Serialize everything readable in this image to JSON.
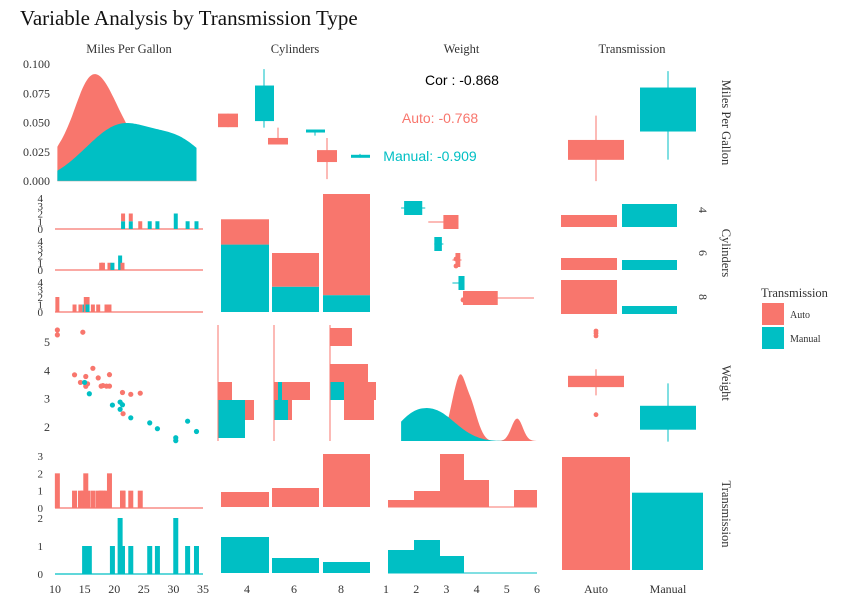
{
  "chart_data": {
    "type": "scatter-matrix",
    "title": "Variable Analysis by Transmission Type",
    "variables": [
      "Miles Per Gallon",
      "Cylinders",
      "Weight",
      "Transmission"
    ],
    "groups": [
      "Auto",
      "Manual"
    ],
    "colors": {
      "Auto": "#F8766D",
      "Manual": "#00BFC4"
    },
    "legend": {
      "title": "Transmission",
      "position": "right",
      "entries": [
        "Auto",
        "Manual"
      ]
    },
    "correlation": {
      "overall": "Cor : -0.868",
      "Auto": "Auto: -0.768",
      "Manual": "Manual: -0.909"
    },
    "axes": {
      "mpg": {
        "range": [
          10,
          35
        ],
        "ticks": [
          "10",
          "15",
          "20",
          "25",
          "30",
          "35"
        ]
      },
      "density": {
        "range": [
          0,
          0.1
        ],
        "ticks": [
          "0.000",
          "0.025",
          "0.050",
          "0.075",
          "0.100"
        ]
      },
      "cyl": {
        "levels": [
          "4",
          "6",
          "8"
        ]
      },
      "wt": {
        "range": [
          1,
          6
        ],
        "ticks": [
          "1",
          "2",
          "3",
          "4",
          "5",
          "6"
        ],
        "yticks": [
          "2",
          "3",
          "4",
          "5"
        ]
      },
      "am": {
        "levels": [
          "Auto",
          "Manual"
        ]
      },
      "count_ticks_4": [
        "0",
        "1",
        "2",
        "3",
        "4"
      ],
      "count_ticks_3": [
        "0",
        "1",
        "2",
        "3"
      ],
      "count_ticks_2": [
        "0",
        "1",
        "2"
      ]
    },
    "mpg_wt_points": [
      {
        "mpg": 21.4,
        "wt": 3.215,
        "am": "Auto"
      },
      {
        "mpg": 18.7,
        "wt": 3.44,
        "am": "Auto"
      },
      {
        "mpg": 18.1,
        "wt": 3.46,
        "am": "Auto"
      },
      {
        "mpg": 14.3,
        "wt": 3.57,
        "am": "Auto"
      },
      {
        "mpg": 24.4,
        "wt": 3.19,
        "am": "Auto"
      },
      {
        "mpg": 22.8,
        "wt": 3.15,
        "am": "Auto"
      },
      {
        "mpg": 19.2,
        "wt": 3.44,
        "am": "Auto"
      },
      {
        "mpg": 17.8,
        "wt": 3.44,
        "am": "Auto"
      },
      {
        "mpg": 16.4,
        "wt": 4.07,
        "am": "Auto"
      },
      {
        "mpg": 17.3,
        "wt": 3.73,
        "am": "Auto"
      },
      {
        "mpg": 15.2,
        "wt": 3.78,
        "am": "Auto"
      },
      {
        "mpg": 10.4,
        "wt": 5.25,
        "am": "Auto"
      },
      {
        "mpg": 10.4,
        "wt": 5.424,
        "am": "Auto"
      },
      {
        "mpg": 14.7,
        "wt": 5.345,
        "am": "Auto"
      },
      {
        "mpg": 21.5,
        "wt": 2.465,
        "am": "Auto"
      },
      {
        "mpg": 15.5,
        "wt": 3.52,
        "am": "Auto"
      },
      {
        "mpg": 15.2,
        "wt": 3.435,
        "am": "Auto"
      },
      {
        "mpg": 13.3,
        "wt": 3.84,
        "am": "Auto"
      },
      {
        "mpg": 19.2,
        "wt": 3.845,
        "am": "Auto"
      },
      {
        "mpg": 21.0,
        "wt": 2.62,
        "am": "Manual"
      },
      {
        "mpg": 21.0,
        "wt": 2.875,
        "am": "Manual"
      },
      {
        "mpg": 22.8,
        "wt": 2.32,
        "am": "Manual"
      },
      {
        "mpg": 32.4,
        "wt": 2.2,
        "am": "Manual"
      },
      {
        "mpg": 30.4,
        "wt": 1.615,
        "am": "Manual"
      },
      {
        "mpg": 33.9,
        "wt": 1.835,
        "am": "Manual"
      },
      {
        "mpg": 27.3,
        "wt": 1.935,
        "am": "Manual"
      },
      {
        "mpg": 26.0,
        "wt": 2.14,
        "am": "Manual"
      },
      {
        "mpg": 30.4,
        "wt": 1.513,
        "am": "Manual"
      },
      {
        "mpg": 15.8,
        "wt": 3.17,
        "am": "Manual"
      },
      {
        "mpg": 19.7,
        "wt": 2.77,
        "am": "Manual"
      },
      {
        "mpg": 15.0,
        "wt": 3.57,
        "am": "Manual"
      },
      {
        "mpg": 21.4,
        "wt": 2.78,
        "am": "Manual"
      }
    ],
    "cyl_am_counts": [
      {
        "cyl": "4",
        "Auto": 3,
        "Manual": 8
      },
      {
        "cyl": "6",
        "Auto": 4,
        "Manual": 3
      },
      {
        "cyl": "8",
        "Auto": 12,
        "Manual": 2
      }
    ],
    "am_counts": {
      "Auto": 19,
      "Manual": 13
    }
  }
}
